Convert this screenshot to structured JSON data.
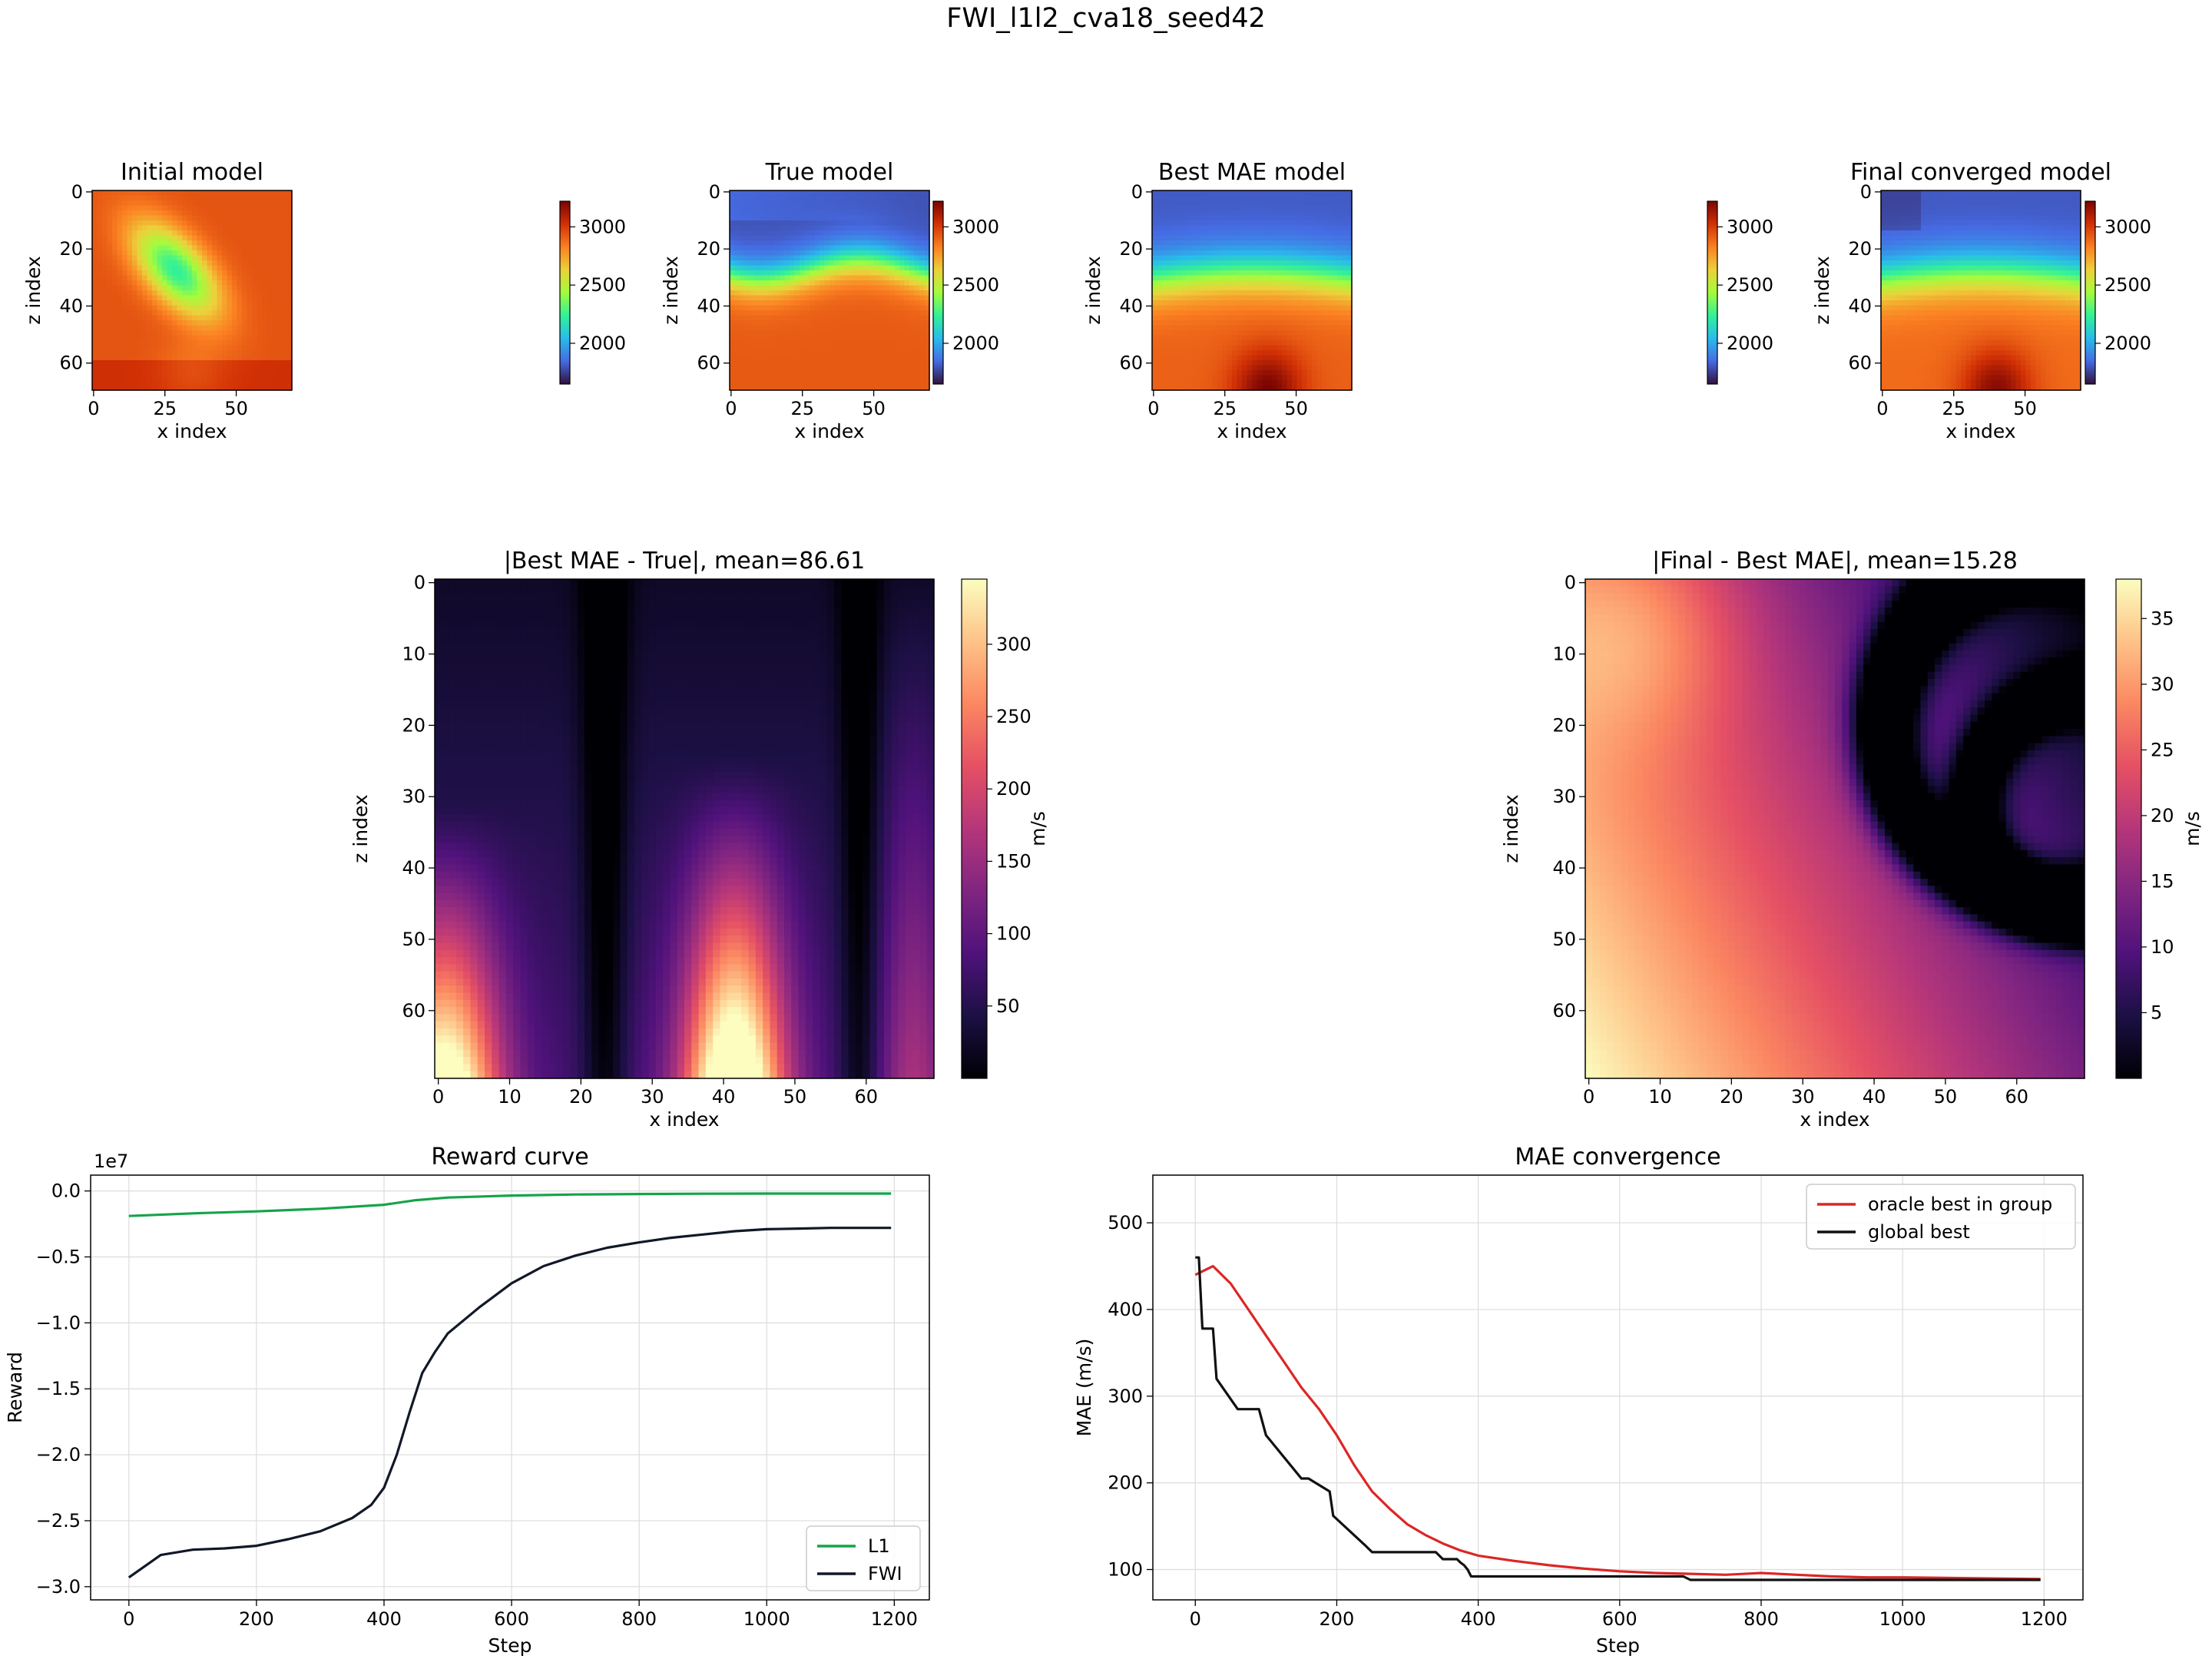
{
  "suptitle": "FWI_l1l2_cva18_seed42",
  "model_panels": {
    "initial": {
      "title": "Initial model"
    },
    "true": {
      "title": "True model"
    },
    "best": {
      "title": "Best MAE model"
    },
    "final": {
      "title": "Final converged model"
    },
    "xlabel": "x index",
    "ylabel": "z index",
    "xticks": [
      0,
      25,
      50
    ],
    "yticks": [
      0,
      20,
      40,
      60
    ],
    "colorbar": {
      "colormap": "turbo",
      "ticks": [
        2000,
        2500,
        3000
      ],
      "vmin": 1650,
      "vmax": 3220
    }
  },
  "diff_panels": {
    "best_vs_true": {
      "title": "|Best MAE - True|, mean=86.61",
      "cbar_ticks": [
        50,
        100,
        150,
        200,
        250,
        300
      ],
      "vmax": 345
    },
    "final_vs_best": {
      "title": "|Final - Best MAE|, mean=15.28",
      "cbar_ticks": [
        5,
        10,
        15,
        20,
        25,
        30,
        35
      ],
      "vmax": 38
    },
    "xlabel": "x index",
    "ylabel": "z index",
    "cbar_label": "m/s",
    "colormap": "magma",
    "xticks": [
      0,
      10,
      20,
      30,
      40,
      50,
      60
    ],
    "yticks": [
      0,
      10,
      20,
      30,
      40,
      50,
      60
    ]
  },
  "chart_data": [
    {
      "type": "line",
      "title": "Reward curve",
      "xlabel": "Step",
      "ylabel": "Reward",
      "offset_text": "1e7",
      "xlim": [
        -60,
        1255
      ],
      "ylim": [
        -3.1,
        0.12
      ],
      "xticks": [
        0,
        200,
        400,
        600,
        800,
        1000,
        1200
      ],
      "yticks": [
        0.0,
        -0.5,
        -1.0,
        -1.5,
        -2.0,
        -2.5,
        -3.0
      ],
      "ytick_labels": [
        "0.0",
        "−0.5",
        "−1.0",
        "−1.5",
        "−2.0",
        "−2.5",
        "−3.0"
      ],
      "grid": true,
      "legend": "lower right",
      "series": [
        {
          "name": "L1",
          "color": "#16a34a",
          "x": [
            0,
            100,
            200,
            300,
            400,
            450,
            500,
            600,
            700,
            800,
            900,
            1000,
            1100,
            1195
          ],
          "y": [
            -0.19,
            -0.17,
            -0.155,
            -0.135,
            -0.105,
            -0.07,
            -0.05,
            -0.035,
            -0.027,
            -0.023,
            -0.021,
            -0.02,
            -0.02,
            -0.02
          ]
        },
        {
          "name": "FWI",
          "color": "#111827",
          "x": [
            0,
            50,
            100,
            150,
            200,
            250,
            300,
            350,
            380,
            400,
            420,
            440,
            460,
            480,
            500,
            550,
            600,
            650,
            700,
            750,
            800,
            850,
            900,
            950,
            1000,
            1050,
            1100,
            1150,
            1195
          ],
          "y": [
            -2.93,
            -2.76,
            -2.72,
            -2.71,
            -2.69,
            -2.64,
            -2.58,
            -2.48,
            -2.38,
            -2.25,
            -2.0,
            -1.68,
            -1.38,
            -1.22,
            -1.08,
            -0.88,
            -0.7,
            -0.57,
            -0.49,
            -0.43,
            -0.39,
            -0.355,
            -0.33,
            -0.305,
            -0.29,
            -0.285,
            -0.28,
            -0.28,
            -0.28
          ]
        }
      ]
    },
    {
      "type": "line",
      "title": "MAE convergence",
      "xlabel": "Step",
      "ylabel": "MAE (m/s)",
      "xlim": [
        -60,
        1255
      ],
      "ylim": [
        65,
        555
      ],
      "xticks": [
        0,
        200,
        400,
        600,
        800,
        1000,
        1200
      ],
      "yticks": [
        100,
        200,
        300,
        400,
        500
      ],
      "grid": true,
      "legend": "upper right",
      "series": [
        {
          "name": "oracle best in group",
          "color": "#dc2626",
          "x": [
            0,
            25,
            50,
            75,
            100,
            125,
            150,
            175,
            200,
            225,
            250,
            275,
            300,
            325,
            350,
            375,
            400,
            450,
            500,
            550,
            600,
            650,
            700,
            750,
            800,
            850,
            900,
            950,
            1000,
            1100,
            1195
          ],
          "y": [
            440,
            450,
            430,
            400,
            370,
            340,
            310,
            285,
            255,
            220,
            190,
            170,
            152,
            140,
            130,
            122,
            116,
            110,
            105,
            101,
            98,
            96,
            95,
            94,
            96,
            94,
            92,
            91,
            91,
            90,
            89
          ]
        },
        {
          "name": "global best",
          "color": "#111111",
          "x": [
            0,
            5,
            10,
            25,
            30,
            60,
            90,
            100,
            150,
            160,
            190,
            195,
            240,
            250,
            340,
            350,
            370,
            375,
            380,
            385,
            390,
            690,
            700,
            1195
          ],
          "y": [
            460,
            460,
            378,
            378,
            320,
            285,
            285,
            255,
            205,
            205,
            190,
            162,
            128,
            120,
            120,
            112,
            112,
            108,
            105,
            100,
            92,
            92,
            88,
            88
          ]
        }
      ]
    }
  ]
}
